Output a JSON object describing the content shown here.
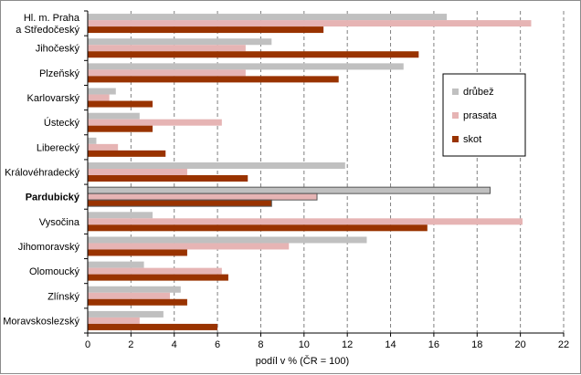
{
  "chart_data": {
    "type": "bar",
    "orientation": "horizontal",
    "categories": [
      [
        "Hl. m. Praha",
        "a Středočeský"
      ],
      [
        "Jihočeský"
      ],
      [
        "Plzeňský"
      ],
      [
        "Karlovarský"
      ],
      [
        "Ústecký"
      ],
      [
        "Liberecký"
      ],
      [
        "Královéhradecký"
      ],
      [
        "Pardubický"
      ],
      [
        "Vysočina"
      ],
      [
        "Jihomoravský"
      ],
      [
        "Olomoucký"
      ],
      [
        "Zlínský"
      ],
      [
        "Moravskoslezský"
      ]
    ],
    "highlighted_category_index": 7,
    "series": [
      {
        "name": "drůbež",
        "color": "#c0c0c0",
        "values": [
          16.6,
          8.5,
          14.6,
          1.3,
          2.4,
          0.4,
          11.9,
          18.6,
          3.0,
          12.9,
          2.6,
          4.3,
          3.5
        ]
      },
      {
        "name": "prasata",
        "color": "#e6b4b4",
        "values": [
          20.5,
          7.3,
          7.3,
          1.0,
          6.2,
          1.4,
          4.6,
          10.6,
          20.1,
          9.3,
          6.2,
          3.8,
          2.4
        ]
      },
      {
        "name": "skot",
        "color": "#993300",
        "values": [
          10.9,
          15.3,
          11.6,
          3.0,
          3.0,
          3.6,
          7.4,
          8.5,
          15.7,
          4.6,
          6.5,
          4.6,
          6.0
        ]
      }
    ],
    "xlabel": "podíl v % (ČR = 100)",
    "xlim": [
      0,
      22
    ],
    "xticks": [
      "0",
      "2",
      "4",
      "6",
      "8",
      "10",
      "12",
      "14",
      "16",
      "18",
      "20",
      "22"
    ],
    "grid": "vertical dashed",
    "legend_position": "right"
  }
}
